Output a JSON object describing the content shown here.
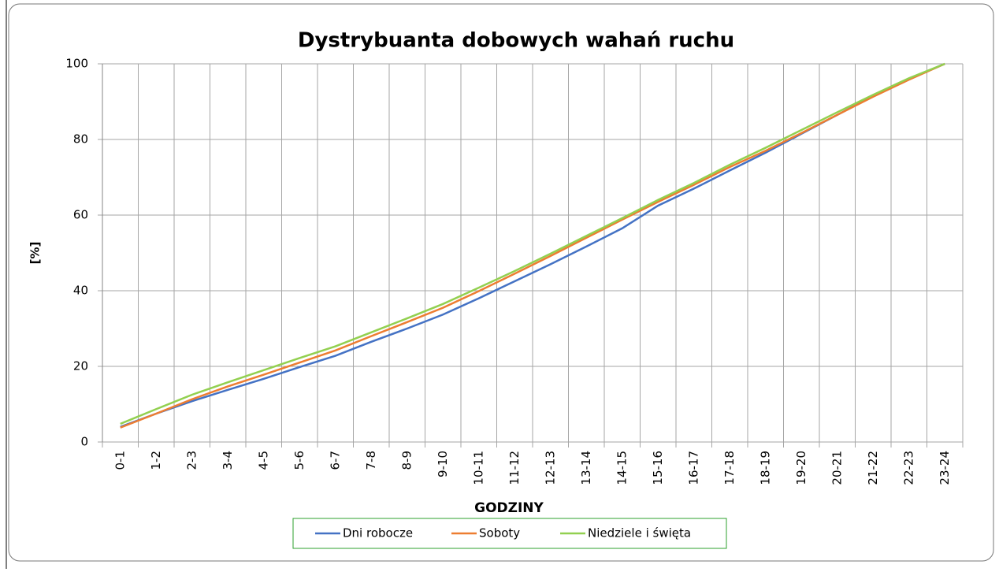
{
  "chart_data": {
    "type": "line",
    "title": "Dystrybuanta dobowych wahań ruchu",
    "xlabel": "GODZINY",
    "ylabel": "[%]",
    "categories": [
      "0-1",
      "1-2",
      "2-3",
      "3-4",
      "4-5",
      "5-6",
      "6-7",
      "7-8",
      "8-9",
      "9-10",
      "10-11",
      "11-12",
      "12-13",
      "13-14",
      "14-15",
      "15-16",
      "16-17",
      "17-18",
      "18-19",
      "19-20",
      "20-21",
      "21-22",
      "22-23",
      "23-24"
    ],
    "series": [
      {
        "name": "Dni robocze",
        "color": "#4472c4",
        "values": [
          4,
          7.5,
          10.8,
          13.8,
          16.7,
          19.8,
          22.8,
          26.5,
          30,
          33.7,
          38,
          42.5,
          47,
          51.7,
          56.5,
          62.5,
          67,
          71.8,
          76.5,
          81.5,
          86.5,
          91.5,
          96,
          100
        ]
      },
      {
        "name": "Soboty",
        "color": "#ed7d31",
        "values": [
          3.8,
          7.5,
          11.3,
          14.7,
          17.8,
          21,
          24.2,
          28,
          31.7,
          35.5,
          39.9,
          44.5,
          49.2,
          54,
          58.8,
          63.5,
          68,
          72.7,
          77,
          81.7,
          86.5,
          91.3,
          95.8,
          100
        ]
      },
      {
        "name": "Niedziele i święta",
        "color": "#92d050",
        "values": [
          4.8,
          8.7,
          12.5,
          15.8,
          19,
          22.2,
          25.3,
          29,
          32.7,
          36.5,
          40.8,
          45.2,
          49.8,
          54.5,
          59.2,
          64,
          68.5,
          73.3,
          77.8,
          82.5,
          87.2,
          91.8,
          96.2,
          100
        ]
      }
    ],
    "ylim": [
      0,
      100
    ],
    "yticks": [
      0,
      20,
      40,
      60,
      80,
      100
    ],
    "grid": true,
    "legend": "bottom"
  }
}
